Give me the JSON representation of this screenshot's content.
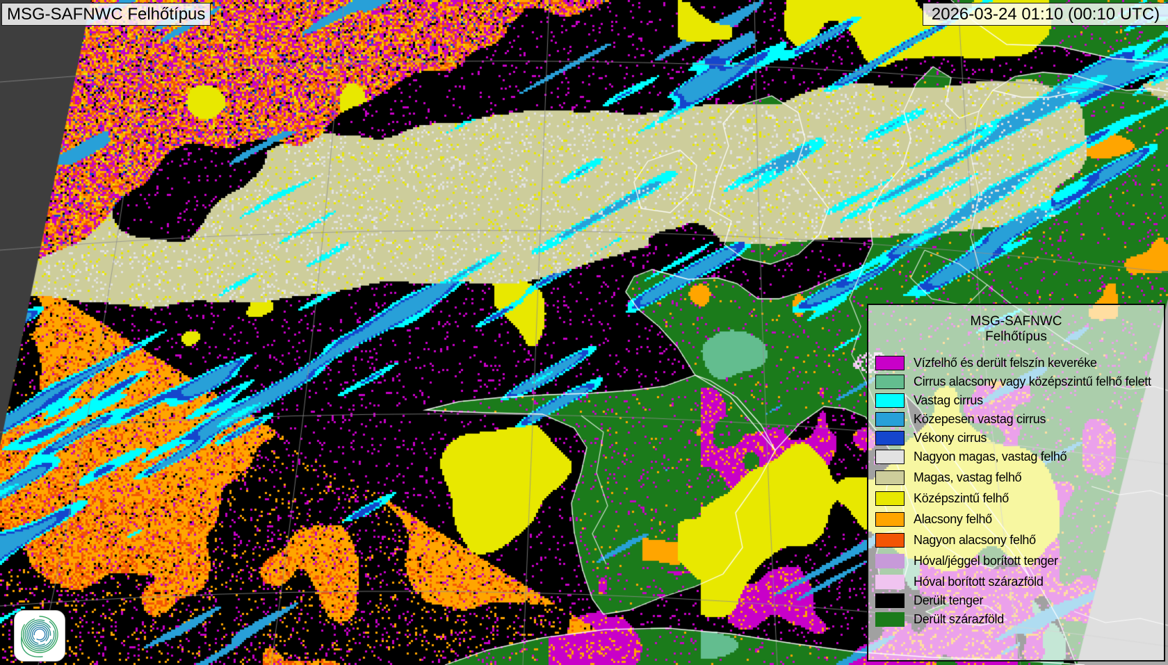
{
  "header": {
    "product_label": "MSG-SAFNWC Felhőtípus",
    "timestamp": "2026-03-24 01:10 (00:10 UTC)"
  },
  "legend": {
    "title_line1": "MSG-SAFNWC",
    "title_line2": "Felhőtípus",
    "items": [
      {
        "label": "Vízfelhő és derült felszín keveréke",
        "color": "#c800c8",
        "outlined": true
      },
      {
        "label": "Cirrus alacsony vagy középszintű felhő felett",
        "color": "#63bd8f",
        "outlined": true
      },
      {
        "label": "Vastag cirrus",
        "color": "#00ffff",
        "outlined": true
      },
      {
        "label": "Közepesen vastag cirrus",
        "color": "#28a0d8",
        "outlined": true
      },
      {
        "label": "Vékony cirrus",
        "color": "#1546cc",
        "outlined": true
      },
      {
        "label": "Nagyon magas, vastag felhő",
        "color": "#e2e2e2",
        "outlined": true
      },
      {
        "label": "Magas, vastag felhő",
        "color": "#cdcd9b",
        "outlined": true
      },
      {
        "label": "Középszintű felhő",
        "color": "#e8e800",
        "outlined": true
      },
      {
        "label": "Alacsony felhő",
        "color": "#ffa500",
        "outlined": true
      },
      {
        "label": "Nagyon alacsony felhő",
        "color": "#f25505",
        "outlined": true
      },
      {
        "label": "Hóval/jéggel borított tenger",
        "color": "#c79ad9",
        "outlined": false
      },
      {
        "label": "Hóval borított szárazföld",
        "color": "#f0c4f0",
        "outlined": false
      },
      {
        "label": "Derült tenger",
        "color": "#000000",
        "outlined": false
      },
      {
        "label": "Derült szárazföld",
        "color": "#1b7b1b",
        "outlined": false
      }
    ]
  },
  "map": {
    "colors": {
      "clear_sea": "#000000",
      "clear_land": "#1b7b1b",
      "outside_scan_left": "#3e3e3e",
      "outside_scan_right": "#a8a8a8",
      "coastline": "#ffffff",
      "graticule": "#8f8f8f"
    }
  },
  "logo": {
    "icon": "met-service-spiral-logo",
    "background": "#ffffff",
    "spiral_colors": [
      "#3aa863",
      "#2d9390",
      "#2e7fb3"
    ]
  }
}
